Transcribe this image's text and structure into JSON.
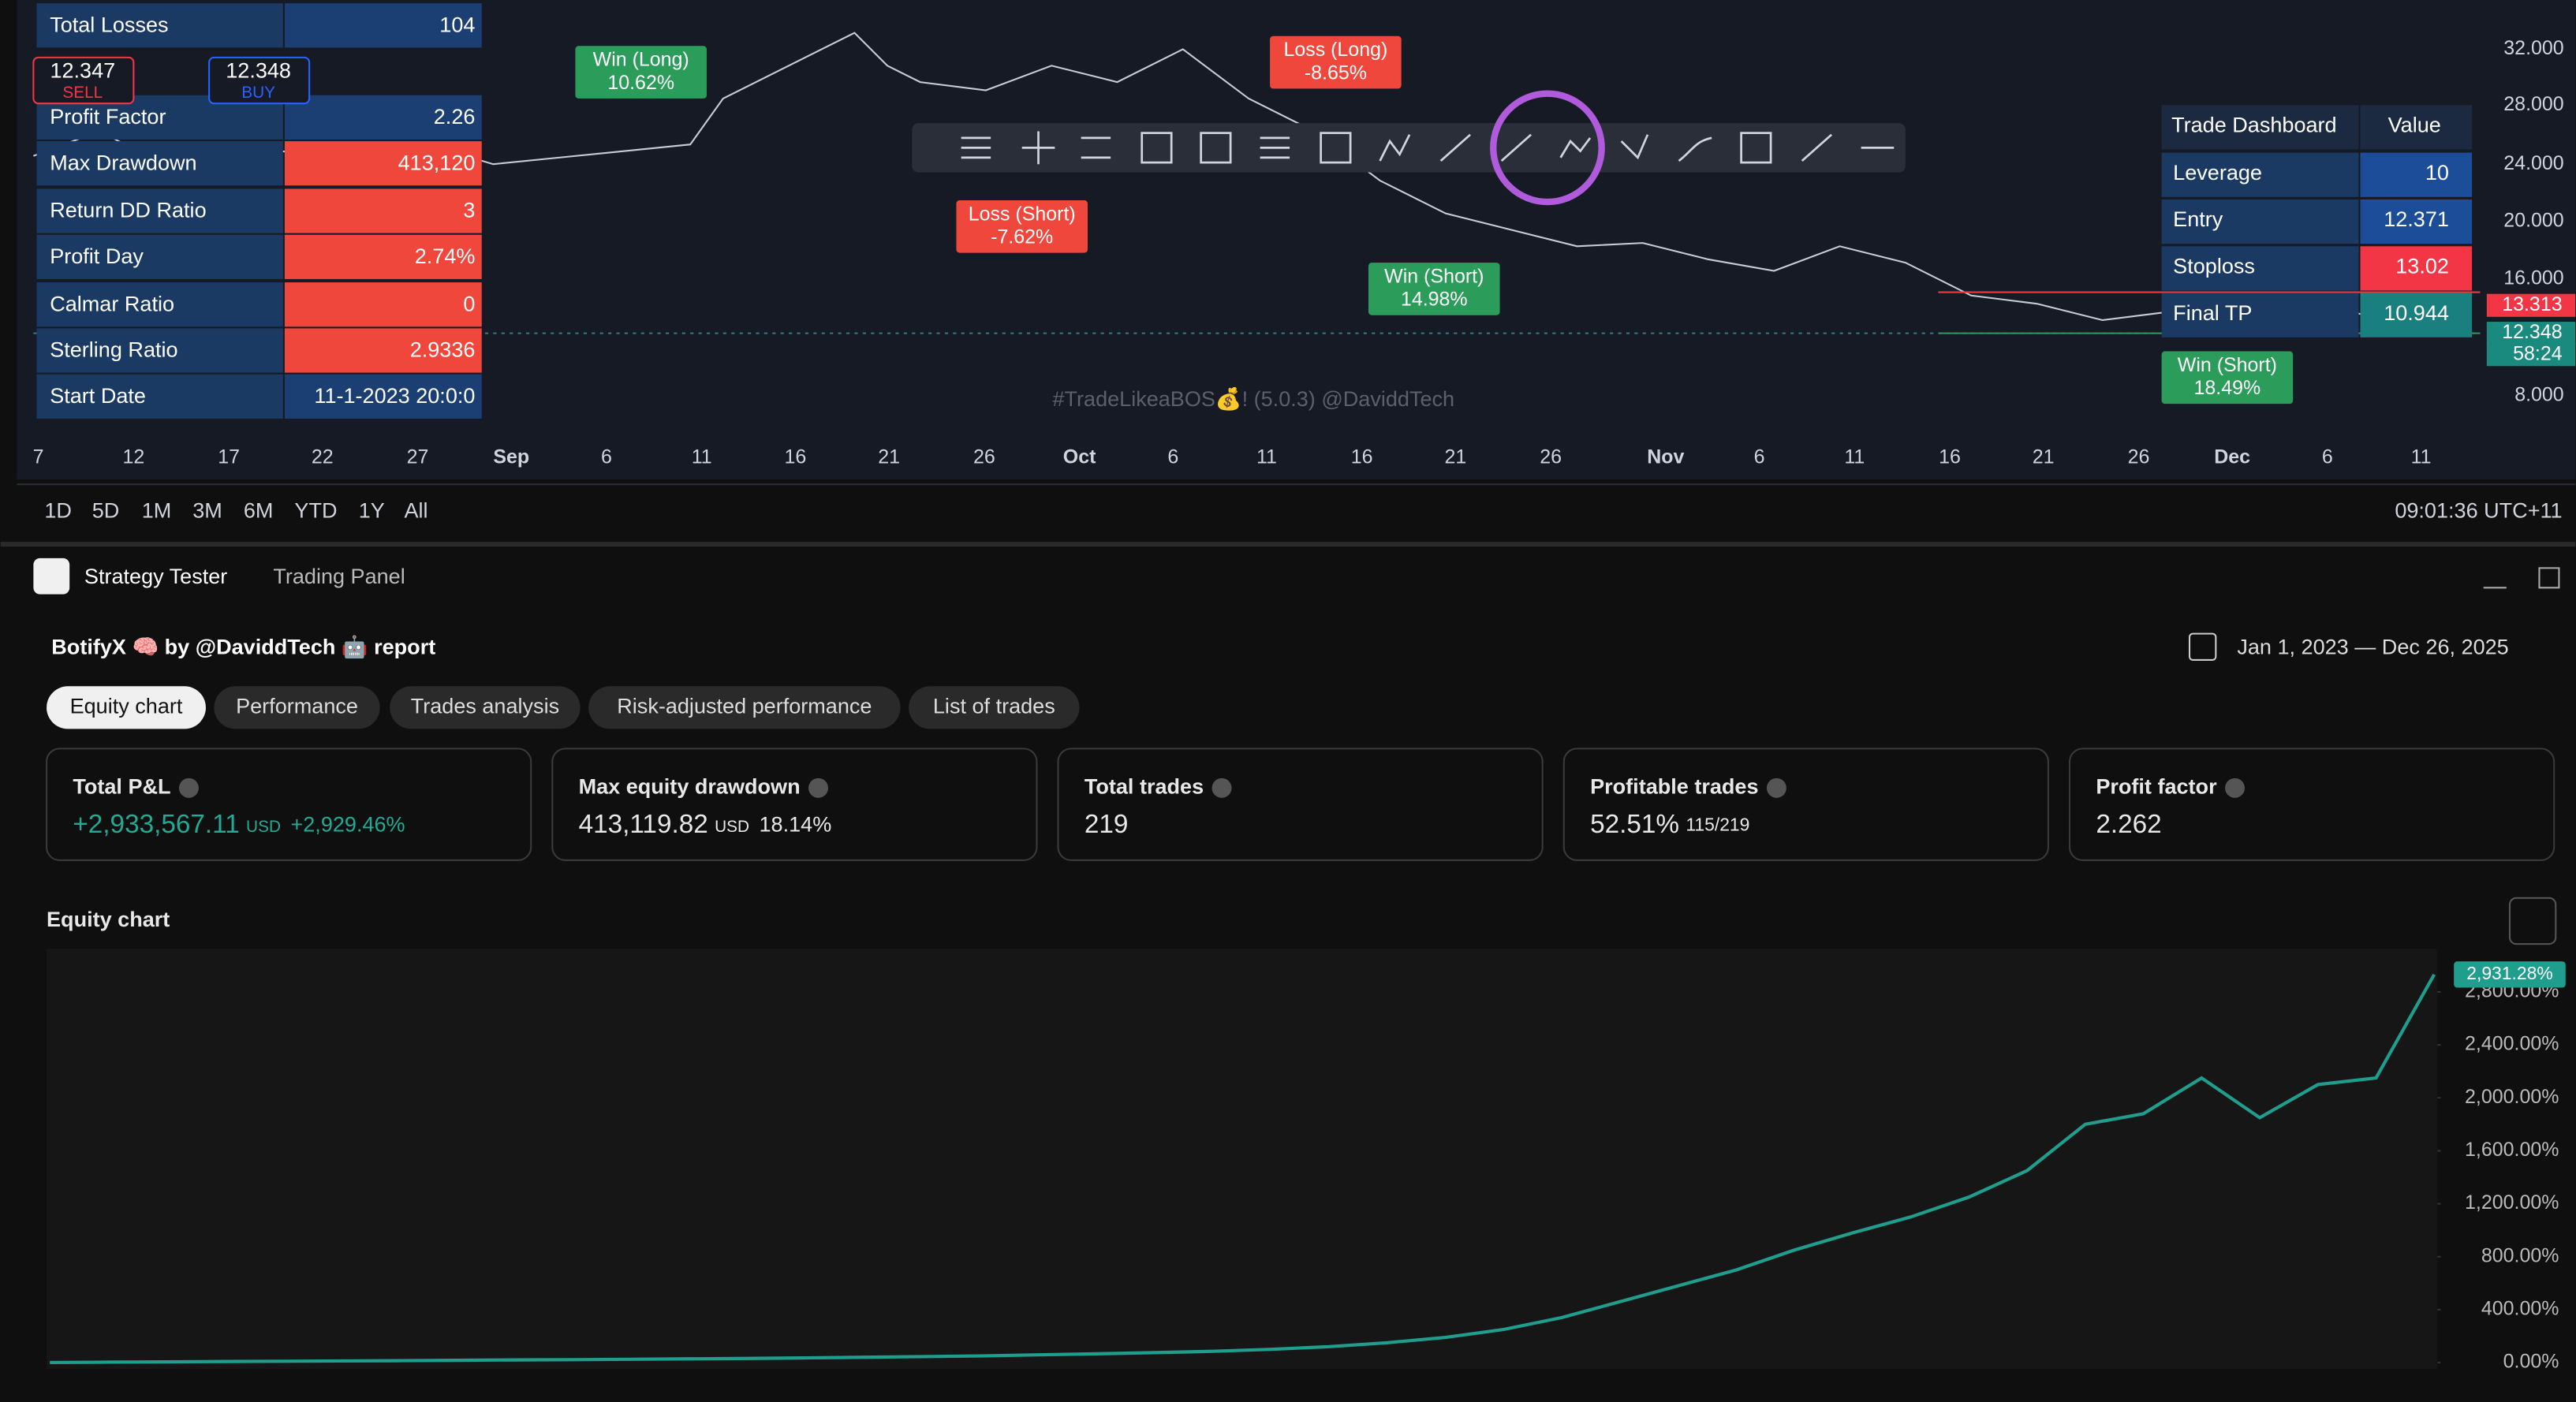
{
  "top_chart": {
    "left_table": {
      "rows": [
        [
          "Total Losses",
          "104"
        ],
        [
          "Profit Factor",
          "2.26"
        ],
        [
          "Max Drawdown",
          "413,120"
        ],
        [
          "Return DD Ratio",
          "3"
        ],
        [
          "Profit Day",
          "2.74%"
        ],
        [
          "Calmar Ratio",
          "0"
        ],
        [
          "Sterling Ratio",
          "2.9336"
        ],
        [
          "Start Date",
          "11-1-2023 20:0:0"
        ]
      ]
    },
    "sell_button": {
      "price": "12.347",
      "label": "SELL"
    },
    "buy_button": {
      "price": "12.348",
      "label": "BUY"
    },
    "right_table": {
      "header": [
        "Trade Dashboard",
        "Value"
      ],
      "rows": [
        [
          "Leverage",
          "10"
        ],
        [
          "Entry",
          "12.371"
        ],
        [
          "Stoploss",
          "13.02"
        ],
        [
          "Final TP",
          "10.944"
        ]
      ]
    },
    "price_axis": [
      "32.000",
      "28.000",
      "24.000",
      "20.000",
      "16.000",
      "8.000"
    ],
    "price_tags": [
      "13.313",
      "12.348",
      "58:24"
    ],
    "date_axis": [
      "7",
      "12",
      "17",
      "22",
      "27",
      "Sep",
      "6",
      "11",
      "16",
      "21",
      "26",
      "Oct",
      "6",
      "11",
      "16",
      "21",
      "26",
      "Nov",
      "6",
      "11",
      "16",
      "21",
      "26",
      "Dec",
      "6",
      "11"
    ],
    "trade_labels": [
      [
        "Win (Long)",
        "10.62%"
      ],
      [
        "Loss (Long)",
        "-8.65%"
      ],
      [
        "Loss (Short)",
        "-7.62%"
      ],
      [
        "Win (Short)",
        "14.98%"
      ],
      [
        "Win (Short)",
        "18.49%"
      ]
    ],
    "watermark": "#TradeLikeaBOS💰! (5.0.3) @DaviddTech"
  },
  "toolbar": {
    "timeframes": [
      "1D",
      "5D",
      "1M",
      "3M",
      "6M",
      "YTD",
      "1Y",
      "All"
    ],
    "clock": "09:01:36 UTC+11"
  },
  "panel_tabs": [
    "Strategy Tester",
    "Trading Panel"
  ],
  "report": {
    "title": "BotifyX 🧠 by @DaviddTech 🤖 report",
    "date_range": "Jan 1, 2023 — Dec 26, 2025",
    "tabs": [
      "Equity chart",
      "Performance",
      "Trades analysis",
      "Risk-adjusted performance",
      "List of trades"
    ]
  },
  "metrics": [
    {
      "label": "Total P&L",
      "value": "+2,933,567.11",
      "unit": "USD",
      "extra": "+2,929.46%"
    },
    {
      "label": "Max equity drawdown",
      "value": "413,119.82",
      "unit": "USD",
      "extra": "18.14%"
    },
    {
      "label": "Total trades",
      "value": "219"
    },
    {
      "label": "Profitable trades",
      "value": "52.51%",
      "extra": "115/219"
    },
    {
      "label": "Profit factor",
      "value": "2.262"
    }
  ],
  "chart_data": {
    "type": "line",
    "title": "Equity chart",
    "color": "#1f9e8e",
    "grid": false,
    "values": [
      0,
      3,
      5,
      8,
      10,
      12,
      14,
      17,
      20,
      22,
      25,
      28,
      31,
      35,
      40,
      45,
      50,
      58,
      66,
      75,
      85,
      100,
      120,
      150,
      190,
      250,
      340,
      460,
      580,
      700,
      850,
      980,
      1100,
      1250,
      1450,
      1800,
      1880,
      2150,
      1850,
      2100,
      2150,
      2931.28
    ],
    "value_labels": [
      null,
      null,
      null,
      null,
      null,
      null,
      null,
      null,
      null,
      null,
      null,
      null,
      null,
      null,
      null,
      null,
      null,
      null,
      null,
      null,
      null,
      null,
      null,
      null,
      null,
      null,
      null,
      null,
      null,
      null,
      null,
      null,
      null,
      null,
      null,
      null,
      null,
      null,
      null,
      null,
      null,
      "2,931.28%"
    ],
    "ylim": [
      -50,
      3125
    ],
    "yticks": [
      {
        "value": 0,
        "label": "0.00%"
      },
      {
        "value": 400,
        "label": "400.00%"
      },
      {
        "value": 800,
        "label": "800.00%"
      },
      {
        "value": 1200,
        "label": "1,200.00%"
      },
      {
        "value": 1600,
        "label": "1,600.00%"
      },
      {
        "value": 2000,
        "label": "2,000.00%"
      },
      {
        "value": 2400,
        "label": "2,400.00%"
      },
      {
        "value": 2800,
        "label": "2,800.00%"
      }
    ]
  }
}
